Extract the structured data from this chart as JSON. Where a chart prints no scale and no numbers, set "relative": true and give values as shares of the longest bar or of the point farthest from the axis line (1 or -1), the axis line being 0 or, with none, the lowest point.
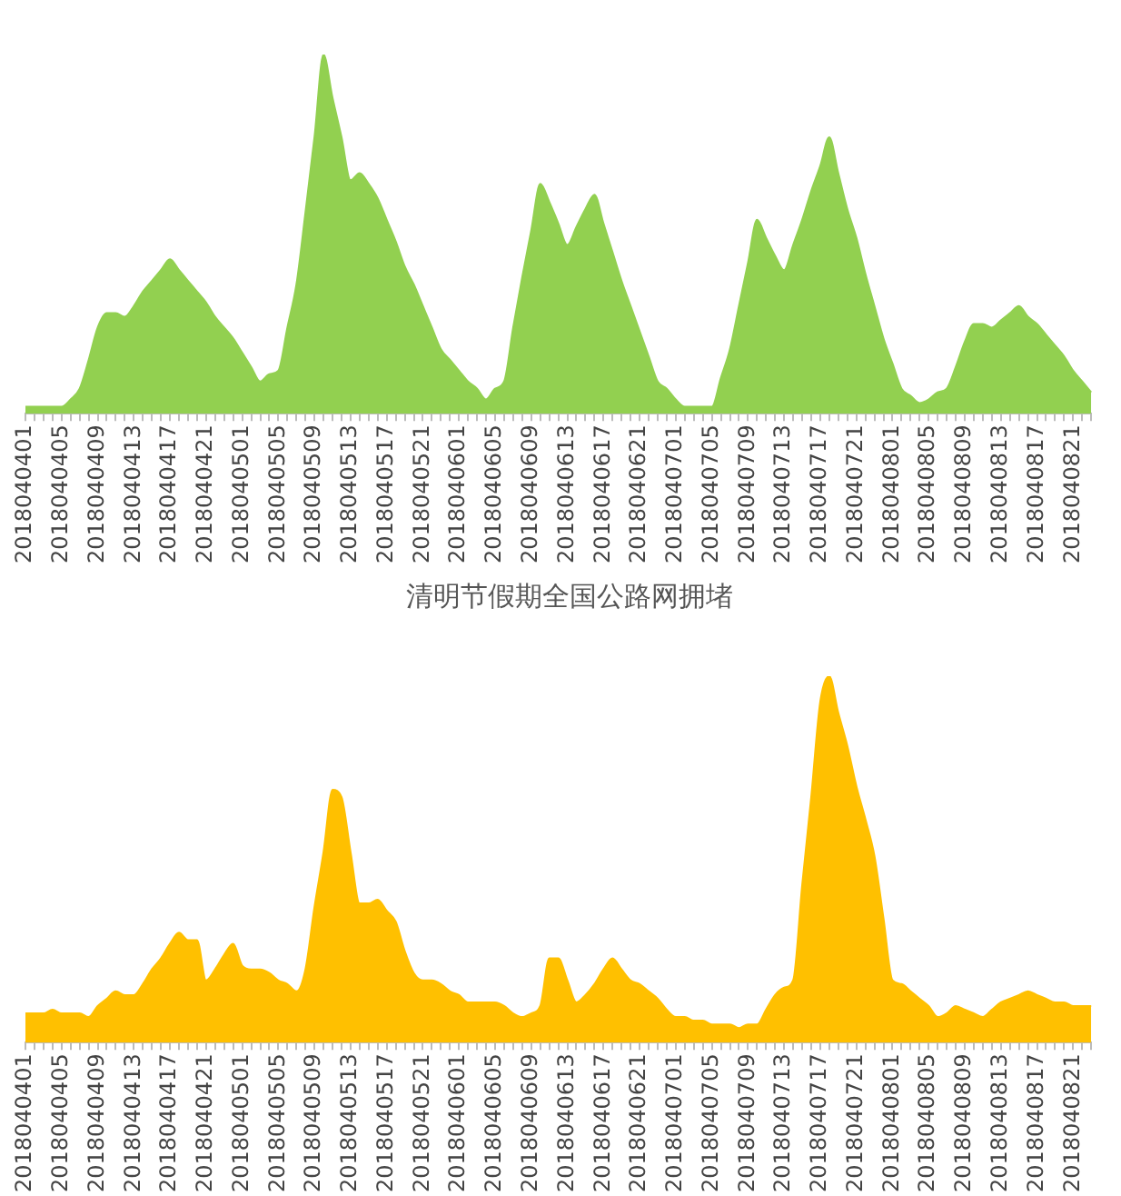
{
  "chart_data": [
    {
      "type": "area",
      "relative": true,
      "color": "#92d050",
      "categories": [
        "2018040401",
        null,
        null,
        null,
        "2018040405",
        null,
        null,
        null,
        "2018040409",
        null,
        null,
        null,
        "2018040413",
        null,
        null,
        null,
        "2018040417",
        null,
        null,
        null,
        "2018040421",
        null,
        null,
        null,
        "2018040501",
        null,
        null,
        null,
        "2018040505",
        null,
        null,
        null,
        "2018040509",
        null,
        null,
        null,
        "2018040513",
        null,
        null,
        null,
        "2018040517",
        null,
        null,
        null,
        "2018040521",
        null,
        null,
        null,
        "2018040601",
        null,
        null,
        null,
        "2018040605",
        null,
        null,
        null,
        "2018040609",
        null,
        null,
        null,
        "2018040613",
        null,
        null,
        null,
        "2018040617",
        null,
        null,
        null,
        "2018040621",
        null,
        null,
        null,
        "2018040701",
        null,
        null,
        null,
        "2018040705",
        null,
        null,
        null,
        "2018040709",
        null,
        null,
        null,
        "2018040713",
        null,
        null,
        null,
        "2018040717",
        null,
        null,
        null,
        "2018040721",
        null,
        null,
        null,
        "2018040801",
        null,
        null,
        null,
        "2018040805",
        null,
        null,
        null,
        "2018040809",
        null,
        null,
        null,
        "2018040813",
        null,
        null,
        null,
        "2018040817",
        null,
        null,
        null,
        "2018040821",
        null,
        null
      ],
      "values": [
        0.02,
        0.02,
        0.02,
        0.02,
        0.02,
        0.04,
        0.07,
        0.15,
        0.24,
        0.28,
        0.28,
        0.27,
        0.3,
        0.34,
        0.37,
        0.4,
        0.43,
        0.4,
        0.37,
        0.34,
        0.31,
        0.27,
        0.24,
        0.21,
        0.17,
        0.13,
        0.09,
        0.11,
        0.12,
        0.24,
        0.36,
        0.56,
        0.77,
        1,
        0.88,
        0.77,
        0.65,
        0.67,
        0.64,
        0.6,
        0.54,
        0.48,
        0.41,
        0.36,
        0.3,
        0.24,
        0.18,
        0.15,
        0.12,
        0.09,
        0.07,
        0.04,
        0.07,
        0.09,
        0.24,
        0.38,
        0.51,
        0.64,
        0.59,
        0.53,
        0.47,
        0.52,
        0.57,
        0.61,
        0.53,
        0.45,
        0.37,
        0.3,
        0.23,
        0.16,
        0.09,
        0.07,
        0.04,
        0.02,
        0.02,
        0.02,
        0.02,
        0.1,
        0.18,
        0.3,
        0.42,
        0.54,
        0.49,
        0.44,
        0.4,
        0.47,
        0.54,
        0.62,
        0.69,
        0.77,
        0.67,
        0.57,
        0.49,
        0.39,
        0.3,
        0.21,
        0.14,
        0.07,
        0.05,
        0.03,
        0.04,
        0.06,
        0.07,
        0.13,
        0.2,
        0.25,
        0.25,
        0.24,
        0.26,
        0.28,
        0.3,
        0.27,
        0.25,
        0.22,
        0.19,
        0.16,
        0.12,
        0.09,
        0.06
      ]
    },
    {
      "type": "area",
      "relative": true,
      "color": "#ffc000",
      "title": "清明节假期全国公路网拥堵",
      "categories": [
        "2018040401",
        null,
        null,
        null,
        "2018040405",
        null,
        null,
        null,
        "2018040409",
        null,
        null,
        null,
        "2018040413",
        null,
        null,
        null,
        "2018040417",
        null,
        null,
        null,
        "2018040421",
        null,
        null,
        null,
        "2018040501",
        null,
        null,
        null,
        "2018040505",
        null,
        null,
        null,
        "2018040509",
        null,
        null,
        null,
        "2018040513",
        null,
        null,
        null,
        "2018040517",
        null,
        null,
        null,
        "2018040521",
        null,
        null,
        null,
        "2018040601",
        null,
        null,
        null,
        "2018040605",
        null,
        null,
        null,
        "2018040609",
        null,
        null,
        null,
        "2018040613",
        null,
        null,
        null,
        "2018040617",
        null,
        null,
        null,
        "2018040621",
        null,
        null,
        null,
        "2018040701",
        null,
        null,
        null,
        "2018040705",
        null,
        null,
        null,
        "2018040709",
        null,
        null,
        null,
        "2018040713",
        null,
        null,
        null,
        "2018040717",
        null,
        null,
        null,
        "2018040721",
        null,
        null,
        null,
        "2018040801",
        null,
        null,
        null,
        "2018040805",
        null,
        null,
        null,
        "2018040809",
        null,
        null,
        null,
        "2018040813",
        null,
        null,
        null,
        "2018040817",
        null,
        null,
        null,
        "2018040821",
        null,
        null
      ],
      "values": [
        0.08,
        0.08,
        0.08,
        0.09,
        0.08,
        0.08,
        0.08,
        0.07,
        0.1,
        0.12,
        0.14,
        0.13,
        0.13,
        0.16,
        0.2,
        0.23,
        0.27,
        0.3,
        0.28,
        0.28,
        0.17,
        0.2,
        0.24,
        0.27,
        0.21,
        0.2,
        0.2,
        0.19,
        0.17,
        0.16,
        0.14,
        0.2,
        0.37,
        0.52,
        0.69,
        0.67,
        0.52,
        0.38,
        0.38,
        0.39,
        0.36,
        0.33,
        0.25,
        0.19,
        0.17,
        0.17,
        0.16,
        0.14,
        0.13,
        0.11,
        0.11,
        0.11,
        0.11,
        0.1,
        0.08,
        0.07,
        0.08,
        0.1,
        0.23,
        0.23,
        0.17,
        0.11,
        0.13,
        0.16,
        0.2,
        0.23,
        0.2,
        0.17,
        0.16,
        0.14,
        0.12,
        0.09,
        0.07,
        0.07,
        0.06,
        0.06,
        0.05,
        0.05,
        0.05,
        0.04,
        0.05,
        0.05,
        0.09,
        0.13,
        0.15,
        0.17,
        0.43,
        0.67,
        0.93,
        1,
        0.9,
        0.81,
        0.7,
        0.61,
        0.51,
        0.34,
        0.17,
        0.16,
        0.14,
        0.12,
        0.1,
        0.07,
        0.08,
        0.1,
        0.09,
        0.08,
        0.07,
        0.09,
        0.11,
        0.12,
        0.13,
        0.14,
        0.13,
        0.12,
        0.11,
        0.11,
        0.1,
        0.1,
        0.1
      ]
    }
  ]
}
